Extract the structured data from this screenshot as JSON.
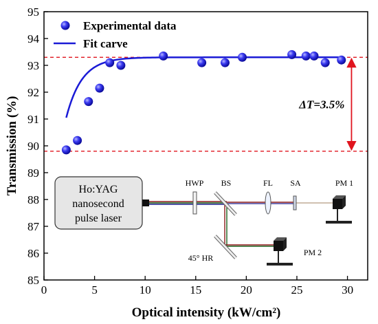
{
  "chart_data": {
    "type": "scatter",
    "xlabel": "Optical intensity (kW/cm²)",
    "ylabel": "Transmission (%)",
    "xlim": [
      0,
      32
    ],
    "ylim": [
      85,
      95
    ],
    "x_ticks": [
      "0",
      "5",
      "10",
      "15",
      "20",
      "25",
      "30"
    ],
    "y_ticks": [
      "85",
      "86",
      "87",
      "88",
      "89",
      "90",
      "91",
      "92",
      "93",
      "94",
      "95"
    ],
    "grid": false,
    "legend_position": "top-left",
    "series": [
      {
        "name": "Experimental data",
        "kind": "scatter",
        "color": "#1a1ad6",
        "points": [
          [
            2.2,
            89.85
          ],
          [
            3.3,
            90.2
          ],
          [
            4.4,
            91.65
          ],
          [
            5.5,
            92.15
          ],
          [
            6.5,
            93.1
          ],
          [
            7.6,
            93.0
          ],
          [
            11.8,
            93.35
          ],
          [
            15.6,
            93.1
          ],
          [
            17.9,
            93.1
          ],
          [
            19.6,
            93.3
          ],
          [
            24.5,
            93.4
          ],
          [
            25.9,
            93.35
          ],
          [
            26.7,
            93.35
          ],
          [
            27.8,
            93.1
          ],
          [
            29.4,
            93.2
          ]
        ]
      },
      {
        "name": "Fit carve",
        "kind": "line",
        "color": "#1a1ad6",
        "model": {
          "y_max": 93.3,
          "amplitude": 9.3,
          "decay": 1.55,
          "x_start": 2.2,
          "x_end": 29.4
        }
      }
    ],
    "reference_lines": [
      {
        "y": 93.3,
        "color": "#e0141e"
      },
      {
        "y": 89.8,
        "color": "#e0141e"
      }
    ],
    "annotation": {
      "text": "ΔT=3.5%",
      "x_at": 30.4,
      "y_from": 89.8,
      "y_to": 93.3,
      "color": "#e0141e"
    }
  },
  "setup": {
    "laser_lines": [
      "Ho:YAG",
      "nanosecond",
      "pulse laser"
    ],
    "labels": {
      "hwp": "HWP",
      "bs": "BS",
      "fl": "FL",
      "sa": "SA",
      "pm1": "PM 1",
      "pm2": "PM 2",
      "hr": "45° HR"
    }
  }
}
